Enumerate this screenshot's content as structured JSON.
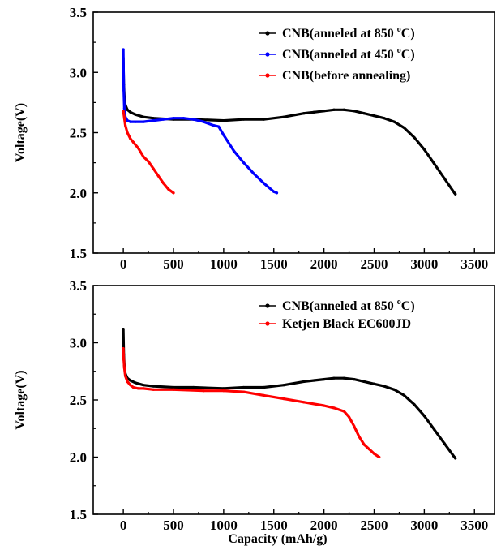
{
  "chart_data": [
    {
      "type": "line",
      "title": "",
      "xlabel": "",
      "ylabel": "Voltage(V)",
      "xlim": [
        -300,
        3700
      ],
      "ylim": [
        1.5,
        3.5
      ],
      "xticks": [
        0,
        500,
        1000,
        1500,
        2000,
        2500,
        3000,
        3500
      ],
      "xtick_labels": [
        "0",
        "500",
        "1000",
        "1500",
        "2000",
        "2500",
        "3000",
        "3500"
      ],
      "yticks": [
        1.5,
        2.0,
        2.5,
        3.0,
        3.5
      ],
      "ytick_labels": [
        "1.5",
        "2.0",
        "2.5",
        "3.0",
        "3.5"
      ],
      "grid": false,
      "legend_position": "top-right",
      "series": [
        {
          "name_prefix": "CNB(anneled at 850 ",
          "name_sup": "o",
          "name_suffix": "C)",
          "color": "#000000",
          "marker": "square",
          "x": [
            0,
            5,
            10,
            20,
            40,
            70,
            120,
            200,
            300,
            500,
            700,
            1000,
            1200,
            1400,
            1600,
            1800,
            1900,
            2000,
            2100,
            2200,
            2300,
            2400,
            2500,
            2600,
            2700,
            2800,
            2900,
            3000,
            3100,
            3200,
            3300,
            3310
          ],
          "y": [
            3.12,
            2.9,
            2.8,
            2.73,
            2.69,
            2.67,
            2.65,
            2.63,
            2.62,
            2.61,
            2.61,
            2.6,
            2.61,
            2.61,
            2.63,
            2.66,
            2.67,
            2.68,
            2.69,
            2.69,
            2.68,
            2.66,
            2.64,
            2.62,
            2.59,
            2.54,
            2.46,
            2.36,
            2.24,
            2.12,
            2.0,
            1.99
          ]
        },
        {
          "name_prefix": "CNB(anneled at 450 ",
          "name_sup": "o",
          "name_suffix": "C)",
          "color": "#0000ff",
          "marker": "triangle",
          "x": [
            0,
            5,
            10,
            20,
            40,
            70,
            120,
            200,
            300,
            400,
            500,
            600,
            700,
            800,
            900,
            950,
            1000,
            1100,
            1200,
            1300,
            1400,
            1500,
            1530
          ],
          "y": [
            3.19,
            2.85,
            2.7,
            2.63,
            2.6,
            2.59,
            2.59,
            2.59,
            2.6,
            2.61,
            2.62,
            2.62,
            2.61,
            2.59,
            2.56,
            2.55,
            2.48,
            2.35,
            2.25,
            2.16,
            2.08,
            2.01,
            2.0
          ]
        },
        {
          "name": "CNB(before annealing)",
          "color": "#ff0000",
          "marker": "circle",
          "x": [
            0,
            10,
            20,
            40,
            70,
            100,
            150,
            200,
            250,
            300,
            350,
            400,
            450,
            500
          ],
          "y": [
            2.68,
            2.62,
            2.56,
            2.5,
            2.45,
            2.42,
            2.37,
            2.3,
            2.26,
            2.2,
            2.14,
            2.08,
            2.03,
            2.0
          ]
        }
      ]
    },
    {
      "type": "line",
      "title": "",
      "xlabel": "Capacity (mAh/g)",
      "ylabel": "Voltage(V)",
      "xlim": [
        -300,
        3700
      ],
      "ylim": [
        1.5,
        3.5
      ],
      "xticks": [
        0,
        500,
        1000,
        1500,
        2000,
        2500,
        3000,
        3500
      ],
      "xtick_labels": [
        "0",
        "500",
        "1000",
        "1500",
        "2000",
        "2500",
        "3000",
        "3500"
      ],
      "yticks": [
        1.5,
        2.0,
        2.5,
        3.0,
        3.5
      ],
      "ytick_labels": [
        "1.5",
        "2.0",
        "2.5",
        "3.0",
        "3.5"
      ],
      "grid": false,
      "legend_position": "top-right",
      "series": [
        {
          "name_prefix": "CNB(anneled at 850 ",
          "name_sup": "o",
          "name_suffix": "C)",
          "color": "#000000",
          "marker": "square",
          "x": [
            0,
            5,
            10,
            20,
            40,
            70,
            120,
            200,
            300,
            500,
            700,
            1000,
            1200,
            1400,
            1600,
            1800,
            1900,
            2000,
            2100,
            2200,
            2300,
            2400,
            2500,
            2600,
            2700,
            2800,
            2900,
            3000,
            3100,
            3200,
            3300,
            3310
          ],
          "y": [
            3.12,
            2.9,
            2.8,
            2.73,
            2.69,
            2.67,
            2.65,
            2.63,
            2.62,
            2.61,
            2.61,
            2.6,
            2.61,
            2.61,
            2.63,
            2.66,
            2.67,
            2.68,
            2.69,
            2.69,
            2.68,
            2.66,
            2.64,
            2.62,
            2.59,
            2.54,
            2.46,
            2.36,
            2.24,
            2.12,
            2.0,
            1.99
          ]
        },
        {
          "name": "Ketjen Black EC600JD",
          "color": "#ff0000",
          "marker": "circle",
          "x": [
            0,
            5,
            10,
            20,
            40,
            70,
            100,
            150,
            200,
            300,
            500,
            800,
            1000,
            1200,
            1400,
            1600,
            1800,
            2000,
            2100,
            2200,
            2250,
            2300,
            2350,
            2400,
            2450,
            2500,
            2550
          ],
          "y": [
            2.95,
            2.85,
            2.78,
            2.71,
            2.66,
            2.63,
            2.61,
            2.6,
            2.6,
            2.59,
            2.59,
            2.58,
            2.58,
            2.57,
            2.54,
            2.51,
            2.48,
            2.45,
            2.43,
            2.4,
            2.35,
            2.27,
            2.18,
            2.11,
            2.07,
            2.03,
            2.0
          ]
        }
      ]
    }
  ]
}
